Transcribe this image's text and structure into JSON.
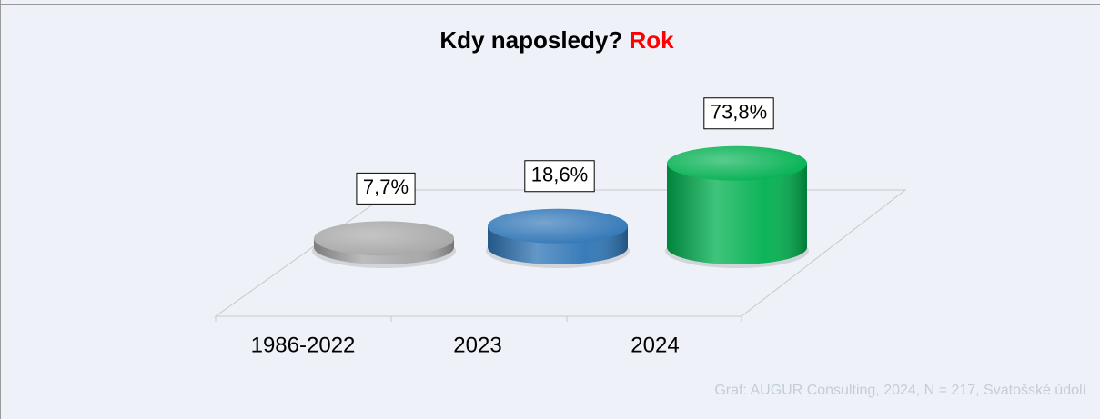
{
  "chart_data": {
    "type": "bar3d",
    "title": "Kdy naposledy?",
    "title_highlight": "Rok",
    "title_highlight_color": "#ff0000",
    "categories": [
      "1986-2022",
      "2023",
      "2024"
    ],
    "values": [
      7.7,
      18.6,
      73.8
    ],
    "value_labels": [
      "7,7%",
      "18,6%",
      "73,8%"
    ],
    "colors": [
      "#a6a6a6",
      "#2e75b6",
      "#00b050"
    ],
    "source": "Graf: AUGUR Consulting, 2024, N = 217, Svatošské údolí"
  }
}
